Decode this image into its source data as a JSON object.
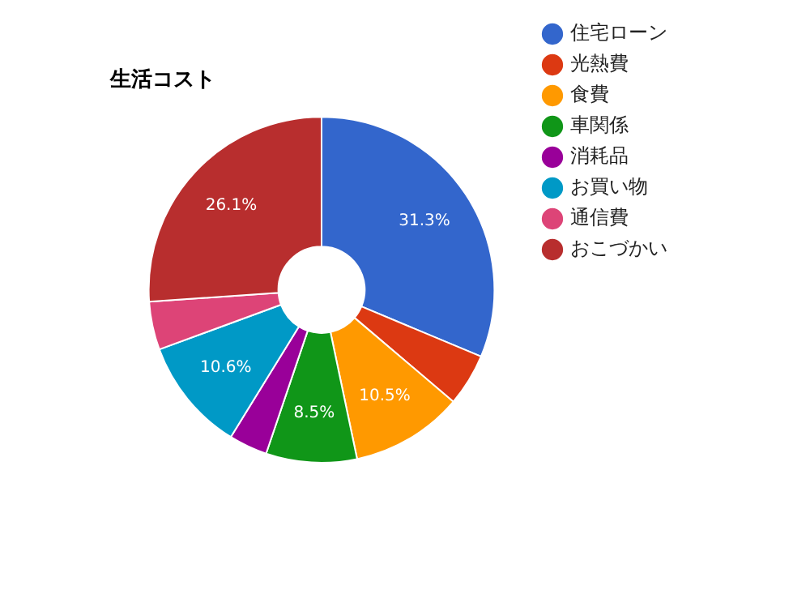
{
  "chart_data": {
    "type": "donut",
    "title": "生活コスト",
    "categories": [
      "住宅ローン",
      "光熱費",
      "食費",
      "車関係",
      "消耗品",
      "お買い物",
      "通信費",
      "おこづかい"
    ],
    "values": [
      31.3,
      4.9,
      10.5,
      8.5,
      3.6,
      10.6,
      4.5,
      26.1
    ],
    "colors": [
      "#3366cc",
      "#dc3912",
      "#ff9900",
      "#109618",
      "#990099",
      "#0099c6",
      "#dd4477",
      "#b82e2e"
    ],
    "value_labels": [
      "31.3%",
      null,
      "10.5%",
      "8.5%",
      null,
      "10.6%",
      null,
      "26.1%"
    ],
    "legend": "right"
  }
}
